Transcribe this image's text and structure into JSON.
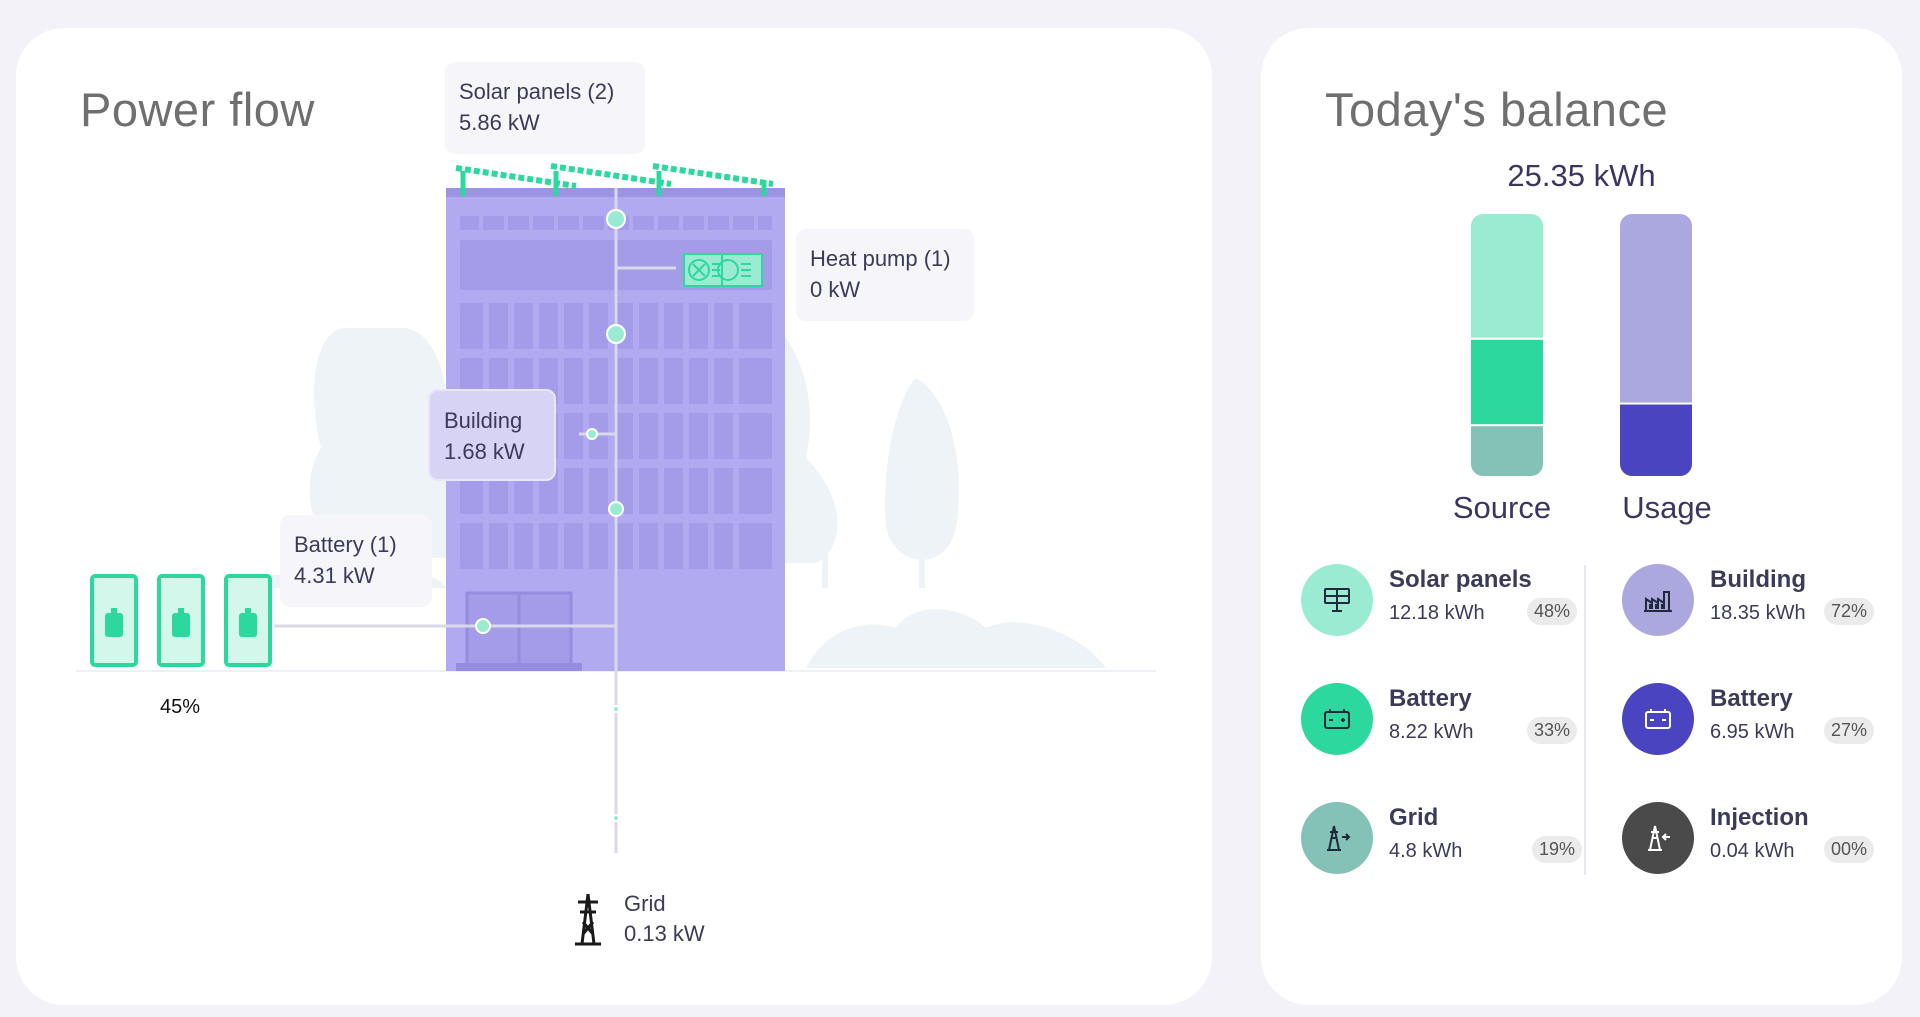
{
  "power_flow": {
    "title": "Power flow",
    "solar": {
      "name": "Solar panels (2)",
      "value": "5.86 kW"
    },
    "heat_pump": {
      "name": "Heat pump (1)",
      "value": "0 kW"
    },
    "building": {
      "name": "Building",
      "value": "1.68 kW"
    },
    "battery": {
      "name": "Battery (1)",
      "value": "4.31 kW",
      "charge": "45%",
      "charge_fraction": 0.45
    },
    "grid": {
      "name": "Grid",
      "value": "0.13 kW"
    }
  },
  "balance": {
    "title": "Today's balance",
    "total": "25.35 kWh",
    "source_label": "Source",
    "usage_label": "Usage",
    "source_segments": [
      {
        "name": "Solar panels",
        "share": 48,
        "color": "#9bebd2"
      },
      {
        "name": "Battery",
        "share": 33,
        "color": "#2dd89e"
      },
      {
        "name": "Grid",
        "share": 19,
        "color": "#84c1b7"
      }
    ],
    "usage_segments": [
      {
        "name": "Building",
        "share": 72,
        "color": "#aba8e0"
      },
      {
        "name": "Battery",
        "share": 27,
        "color": "#4a44c0"
      }
    ],
    "sources": [
      {
        "name": "Solar panels",
        "value": "12.18 kWh",
        "pct": "48%",
        "icon": "solar-panel-icon",
        "color": "#9bebd2"
      },
      {
        "name": "Battery",
        "value": "8.22 kWh",
        "pct": "33%",
        "icon": "battery-icon",
        "color": "#2dd89e"
      },
      {
        "name": "Grid",
        "value": "4.8 kWh",
        "pct": "19%",
        "icon": "grid-tower-icon",
        "color": "#84c1b7"
      }
    ],
    "usages": [
      {
        "name": "Building",
        "value": "18.35 kWh",
        "pct": "72%",
        "icon": "factory-icon",
        "color": "#aba8e0"
      },
      {
        "name": "Battery",
        "value": "6.95 kWh",
        "pct": "27%",
        "icon": "battery-icon",
        "color": "#4a44c0"
      },
      {
        "name": "Injection",
        "value": "0.04 kWh",
        "pct": "00%",
        "icon": "grid-tower-icon",
        "color": "#4a4a4a"
      }
    ]
  }
}
